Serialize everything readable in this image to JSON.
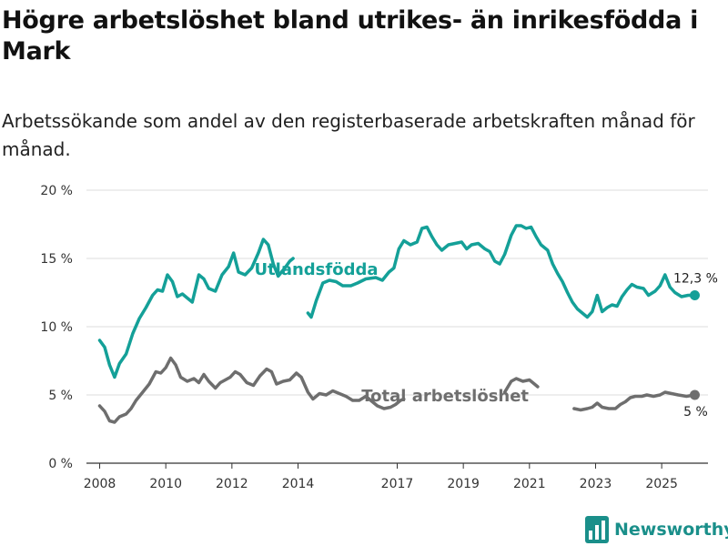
{
  "title": "Högre arbetslöshet bland utrikes- än inrikesfödda i Mark",
  "subtitle": "Arbetssökande som andel av den registerbaserade arbetskraften månad för månad.",
  "brand": {
    "name": "Newsworthy",
    "color": "#1a8f8a",
    "icon": "bar-chart-icon"
  },
  "chart_data": {
    "type": "line",
    "ylim": [
      0,
      20
    ],
    "xlim": [
      2007.6,
      2026.4
    ],
    "y_ticks": [
      {
        "value": 0,
        "label": "0 %"
      },
      {
        "value": 5,
        "label": "5 %"
      },
      {
        "value": 10,
        "label": "10 %"
      },
      {
        "value": 15,
        "label": "15 %"
      },
      {
        "value": 20,
        "label": "20 %"
      }
    ],
    "x_ticks": [
      {
        "value": 2008,
        "label": "2008"
      },
      {
        "value": 2010,
        "label": "2010"
      },
      {
        "value": 2012,
        "label": "2012"
      },
      {
        "value": 2014,
        "label": "2014"
      },
      {
        "value": 2017,
        "label": "2017"
      },
      {
        "value": 2019,
        "label": "2019"
      },
      {
        "value": 2021,
        "label": "2021"
      },
      {
        "value": 2023,
        "label": "2023"
      },
      {
        "value": 2025,
        "label": "2025"
      }
    ],
    "grid": true,
    "series": [
      {
        "name": "Utlandsfödda",
        "color": "#14a098",
        "end_label": "12,3 %",
        "label_at": [
          2014.55,
          13.8
        ],
        "points": [
          [
            2008.0,
            9.0
          ],
          [
            2008.15,
            8.5
          ],
          [
            2008.3,
            7.2
          ],
          [
            2008.45,
            6.3
          ],
          [
            2008.6,
            7.3
          ],
          [
            2008.8,
            8.0
          ],
          [
            2009.0,
            9.5
          ],
          [
            2009.2,
            10.6
          ],
          [
            2009.4,
            11.4
          ],
          [
            2009.6,
            12.3
          ],
          [
            2009.75,
            12.7
          ],
          [
            2009.9,
            12.6
          ],
          [
            2010.05,
            13.8
          ],
          [
            2010.2,
            13.3
          ],
          [
            2010.35,
            12.2
          ],
          [
            2010.5,
            12.4
          ],
          [
            2010.65,
            12.1
          ],
          [
            2010.8,
            11.8
          ],
          [
            2011.0,
            13.8
          ],
          [
            2011.15,
            13.5
          ],
          [
            2011.3,
            12.8
          ],
          [
            2011.5,
            12.6
          ],
          [
            2011.7,
            13.8
          ],
          [
            2011.9,
            14.4
          ],
          [
            2012.05,
            15.4
          ],
          [
            2012.2,
            14.0
          ],
          [
            2012.4,
            13.8
          ],
          [
            2012.6,
            14.3
          ],
          [
            2012.8,
            15.4
          ],
          [
            2012.95,
            16.4
          ],
          [
            2013.1,
            16.0
          ],
          [
            2013.25,
            14.6
          ],
          [
            2013.4,
            13.7
          ],
          [
            2013.6,
            14.3
          ],
          [
            2013.75,
            14.8
          ],
          [
            2013.85,
            15.0
          ]
        ],
        "segments_after_gap": [
          [
            2014.3,
            11.0
          ],
          [
            2014.4,
            10.7
          ],
          [
            2014.55,
            11.9
          ],
          [
            2014.75,
            13.2
          ],
          [
            2014.95,
            13.4
          ],
          [
            2015.15,
            13.3
          ],
          [
            2015.35,
            13.0
          ],
          [
            2015.6,
            13.0
          ],
          [
            2015.8,
            13.2
          ],
          [
            2016.05,
            13.5
          ],
          [
            2016.35,
            13.6
          ],
          [
            2016.55,
            13.4
          ],
          [
            2016.75,
            14.0
          ],
          [
            2016.9,
            14.3
          ],
          [
            2017.05,
            15.7
          ],
          [
            2017.2,
            16.3
          ],
          [
            2017.4,
            16.0
          ],
          [
            2017.6,
            16.2
          ],
          [
            2017.75,
            17.2
          ],
          [
            2017.9,
            17.3
          ],
          [
            2018.05,
            16.6
          ],
          [
            2018.2,
            16.0
          ],
          [
            2018.35,
            15.6
          ],
          [
            2018.55,
            16.0
          ],
          [
            2018.75,
            16.1
          ],
          [
            2018.95,
            16.2
          ],
          [
            2019.1,
            15.7
          ],
          [
            2019.25,
            16.0
          ],
          [
            2019.45,
            16.1
          ],
          [
            2019.65,
            15.7
          ],
          [
            2019.8,
            15.5
          ],
          [
            2019.95,
            14.8
          ],
          [
            2020.1,
            14.6
          ],
          [
            2020.25,
            15.3
          ],
          [
            2020.45,
            16.7
          ],
          [
            2020.6,
            17.4
          ],
          [
            2020.75,
            17.4
          ],
          [
            2020.9,
            17.2
          ],
          [
            2021.05,
            17.3
          ],
          [
            2021.2,
            16.6
          ],
          [
            2021.35,
            16.0
          ],
          [
            2021.55,
            15.6
          ],
          [
            2021.7,
            14.6
          ],
          [
            2021.85,
            13.9
          ],
          [
            2022.0,
            13.3
          ],
          [
            2022.15,
            12.5
          ],
          [
            2022.3,
            11.8
          ],
          [
            2022.45,
            11.3
          ],
          [
            2022.6,
            11.0
          ],
          [
            2022.75,
            10.7
          ],
          [
            2022.9,
            11.1
          ],
          [
            2023.05,
            12.3
          ],
          [
            2023.2,
            11.1
          ],
          [
            2023.35,
            11.4
          ],
          [
            2023.5,
            11.6
          ],
          [
            2023.65,
            11.5
          ],
          [
            2023.8,
            12.2
          ],
          [
            2023.95,
            12.7
          ],
          [
            2024.1,
            13.1
          ],
          [
            2024.25,
            12.9
          ],
          [
            2024.45,
            12.8
          ],
          [
            2024.6,
            12.3
          ],
          [
            2024.8,
            12.6
          ],
          [
            2024.95,
            13.0
          ],
          [
            2025.1,
            13.8
          ],
          [
            2025.25,
            12.9
          ],
          [
            2025.4,
            12.5
          ],
          [
            2025.6,
            12.2
          ],
          [
            2025.8,
            12.3
          ],
          [
            2026.0,
            12.3
          ]
        ],
        "end_value": [
          2026.0,
          12.3
        ]
      },
      {
        "name": "Total arbetslöshet",
        "color": "#6e6e6e",
        "end_label": "5 %",
        "label_at": [
          2018.45,
          4.55
        ],
        "points": [
          [
            2008.0,
            4.2
          ],
          [
            2008.15,
            3.8
          ],
          [
            2008.3,
            3.1
          ],
          [
            2008.45,
            3.0
          ],
          [
            2008.6,
            3.4
          ],
          [
            2008.8,
            3.6
          ],
          [
            2008.95,
            4.0
          ],
          [
            2009.1,
            4.6
          ],
          [
            2009.3,
            5.2
          ],
          [
            2009.5,
            5.8
          ],
          [
            2009.7,
            6.7
          ],
          [
            2009.85,
            6.6
          ],
          [
            2010.0,
            7.0
          ],
          [
            2010.15,
            7.7
          ],
          [
            2010.3,
            7.2
          ],
          [
            2010.45,
            6.3
          ],
          [
            2010.65,
            6.0
          ],
          [
            2010.85,
            6.2
          ],
          [
            2011.0,
            5.9
          ],
          [
            2011.15,
            6.5
          ],
          [
            2011.3,
            6.0
          ],
          [
            2011.5,
            5.5
          ],
          [
            2011.65,
            5.9
          ],
          [
            2011.8,
            6.1
          ],
          [
            2011.95,
            6.3
          ],
          [
            2012.1,
            6.7
          ],
          [
            2012.25,
            6.5
          ],
          [
            2012.45,
            5.9
          ],
          [
            2012.65,
            5.7
          ],
          [
            2012.85,
            6.4
          ],
          [
            2013.05,
            6.9
          ],
          [
            2013.2,
            6.7
          ],
          [
            2013.35,
            5.8
          ],
          [
            2013.55,
            6.0
          ],
          [
            2013.75,
            6.1
          ],
          [
            2013.95,
            6.6
          ],
          [
            2014.1,
            6.3
          ],
          [
            2014.3,
            5.2
          ],
          [
            2014.45,
            4.7
          ],
          [
            2014.65,
            5.1
          ],
          [
            2014.85,
            5.0
          ],
          [
            2015.05,
            5.3
          ],
          [
            2015.25,
            5.1
          ],
          [
            2015.45,
            4.9
          ],
          [
            2015.65,
            4.6
          ],
          [
            2015.85,
            4.6
          ],
          [
            2016.05,
            4.9
          ],
          [
            2016.2,
            4.6
          ],
          [
            2016.4,
            4.2
          ],
          [
            2016.6,
            4.0
          ],
          [
            2016.8,
            4.1
          ],
          [
            2016.95,
            4.3
          ],
          [
            2017.1,
            4.6
          ],
          [
            2017.2,
            4.7
          ]
        ],
        "segments_after_gap": [
          [
            2020.25,
            5.2
          ],
          [
            2020.45,
            6.0
          ],
          [
            2020.6,
            6.2
          ],
          [
            2020.8,
            6.0
          ],
          [
            2021.0,
            6.1
          ],
          [
            2021.15,
            5.8
          ],
          [
            2021.25,
            5.6
          ]
        ],
        "segments_after_gap_2": [
          [
            2022.35,
            4.0
          ],
          [
            2022.55,
            3.9
          ],
          [
            2022.75,
            4.0
          ],
          [
            2022.9,
            4.1
          ],
          [
            2023.05,
            4.4
          ],
          [
            2023.2,
            4.1
          ],
          [
            2023.4,
            4.0
          ],
          [
            2023.6,
            4.0
          ],
          [
            2023.75,
            4.3
          ],
          [
            2023.9,
            4.5
          ],
          [
            2024.05,
            4.8
          ],
          [
            2024.2,
            4.9
          ],
          [
            2024.4,
            4.9
          ],
          [
            2024.55,
            5.0
          ],
          [
            2024.75,
            4.9
          ],
          [
            2024.95,
            5.0
          ],
          [
            2025.1,
            5.2
          ],
          [
            2025.3,
            5.1
          ],
          [
            2025.5,
            5.0
          ],
          [
            2025.75,
            4.9
          ],
          [
            2026.0,
            5.0
          ]
        ],
        "end_value": [
          2026.0,
          5.0
        ]
      }
    ]
  }
}
